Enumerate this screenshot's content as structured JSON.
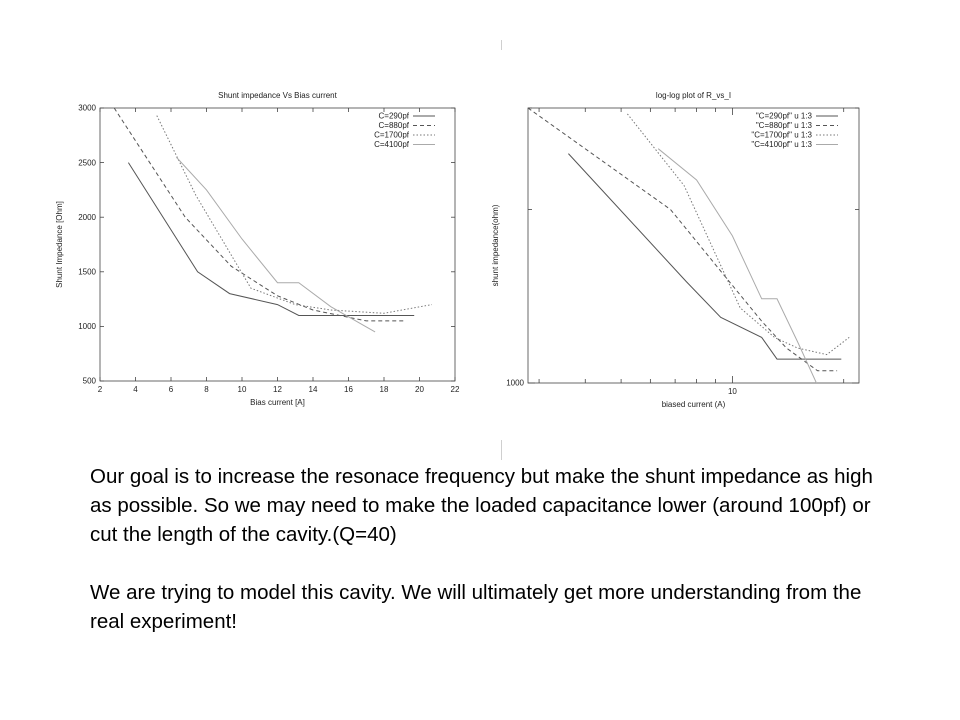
{
  "chart_data": [
    {
      "type": "line",
      "title": "Shunt impedance Vs Bias current",
      "xlabel": "Bias current [A]",
      "ylabel": "Shunt Impedance [Ohm]",
      "xlim": [
        2,
        22
      ],
      "ylim": [
        500,
        3000
      ],
      "x_ticks": [
        2,
        4,
        6,
        8,
        10,
        12,
        14,
        16,
        18,
        20,
        22
      ],
      "y_ticks": [
        500,
        1000,
        1500,
        2000,
        2500,
        3000
      ],
      "grid": false,
      "legend_position": "top-right",
      "series": [
        {
          "name": "C=290pf",
          "color": "#555555",
          "dash": "",
          "points": [
            [
              3.6,
              2500
            ],
            [
              7.5,
              1500
            ],
            [
              9.3,
              1300
            ],
            [
              12,
              1200
            ],
            [
              13.2,
              1100
            ],
            [
              17.6,
              1100
            ],
            [
              19.7,
              1100
            ]
          ]
        },
        {
          "name": "C=880pf",
          "color": "#555555",
          "dash": "4,3",
          "points": [
            [
              2.8,
              3000
            ],
            [
              6.8,
              2000
            ],
            [
              9.4,
              1550
            ],
            [
              12,
              1280
            ],
            [
              14,
              1150
            ],
            [
              17,
              1050
            ],
            [
              19.2,
              1050
            ]
          ]
        },
        {
          "name": "C=1700pf",
          "color": "#777777",
          "dash": "1.5,2",
          "points": [
            [
              5.2,
              2930
            ],
            [
              7.4,
              2200
            ],
            [
              10.5,
              1350
            ],
            [
              13,
              1200
            ],
            [
              15,
              1150
            ],
            [
              18,
              1120
            ],
            [
              20.7,
              1200
            ]
          ]
        },
        {
          "name": "C=4100pf",
          "color": "#aaaaaa",
          "dash": "",
          "points": [
            [
              6.3,
              2550
            ],
            [
              8,
              2250
            ],
            [
              10,
              1800
            ],
            [
              12,
              1400
            ],
            [
              13.2,
              1400
            ],
            [
              15,
              1180
            ],
            [
              17.5,
              950
            ]
          ]
        }
      ]
    },
    {
      "type": "line",
      "title": "log-log plot of R_vs_I",
      "xlabel": "biased current (A)",
      "ylabel": "shunt impedance(ohm)",
      "x_scale": "log",
      "y_scale": "log",
      "xlim": [
        2.8,
        22
      ],
      "ylim": [
        1000,
        3000
      ],
      "x_tick_labels": [
        {
          "value": 10,
          "label": "10"
        }
      ],
      "y_tick_labels": [
        {
          "value": 1000,
          "label": "1000"
        }
      ],
      "x_minor_ticks": [
        3,
        4,
        5,
        6,
        7,
        8,
        9,
        20
      ],
      "y_minor_ticks": [
        2000,
        3000
      ],
      "grid": false,
      "legend_position": "top-right",
      "series": [
        {
          "name": "\"C=290pf\" u 1:3",
          "color": "#555555",
          "dash": "",
          "points": [
            [
              3.6,
              2500
            ],
            [
              7.5,
              1500
            ],
            [
              9.3,
              1300
            ],
            [
              12,
              1200
            ],
            [
              13.2,
              1100
            ],
            [
              17.6,
              1100
            ],
            [
              19.7,
              1100
            ]
          ]
        },
        {
          "name": "\"C=880pf\" u 1:3",
          "color": "#555555",
          "dash": "4,3",
          "points": [
            [
              2.8,
              3000
            ],
            [
              6.8,
              2000
            ],
            [
              9.4,
              1550
            ],
            [
              12,
              1280
            ],
            [
              14,
              1150
            ],
            [
              17,
              1050
            ],
            [
              19.2,
              1050
            ]
          ]
        },
        {
          "name": "\"C=1700pf\" u 1:3",
          "color": "#777777",
          "dash": "1.5,2",
          "points": [
            [
              5.2,
              2930
            ],
            [
              7.4,
              2200
            ],
            [
              10.5,
              1350
            ],
            [
              13,
              1200
            ],
            [
              15,
              1150
            ],
            [
              18,
              1120
            ],
            [
              20.7,
              1200
            ]
          ]
        },
        {
          "name": "\"C=4100pf\" u 1:3",
          "color": "#aaaaaa",
          "dash": "",
          "points": [
            [
              6.3,
              2550
            ],
            [
              8,
              2250
            ],
            [
              10,
              1800
            ],
            [
              12,
              1400
            ],
            [
              13.2,
              1400
            ],
            [
              15,
              1180
            ],
            [
              17.5,
              950
            ]
          ]
        }
      ]
    }
  ],
  "caption": {
    "paragraph1": "Our goal is to increase the resonace frequency but make the shunt impedance as high as possible.  So we may need to make the loaded capacitance lower (around 100pf) or cut the length of the cavity.(Q=40)",
    "paragraph2": "We are trying to model this cavity.  We will ultimately get more understanding from the real experiment!"
  }
}
